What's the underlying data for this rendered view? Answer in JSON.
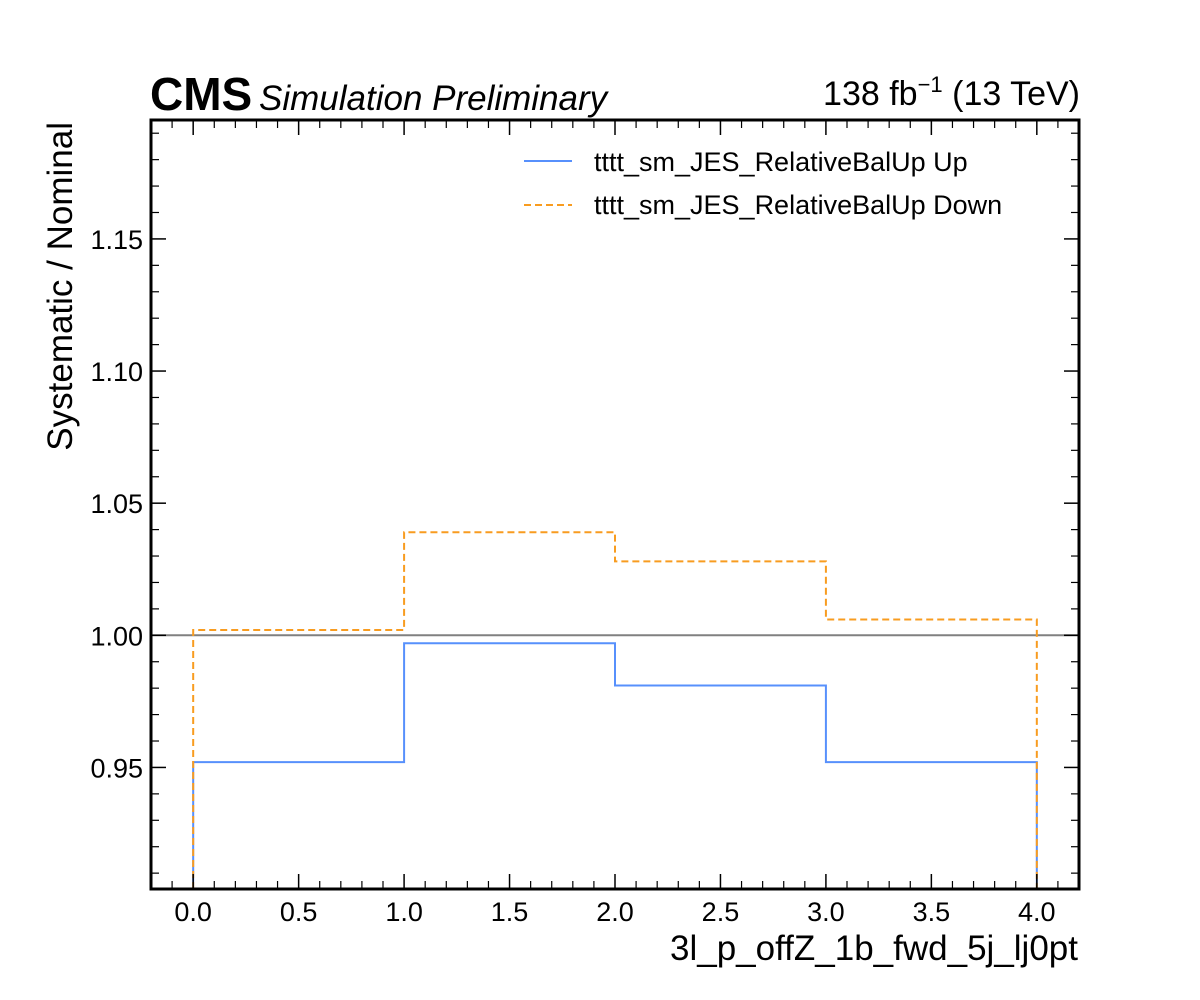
{
  "header": {
    "experiment": "CMS",
    "status": "Simulation Preliminary",
    "lumi_value": "138 fb",
    "lumi_exp": "−1",
    "energy": " (13 TeV)"
  },
  "chart_data": {
    "type": "line",
    "step": true,
    "xlabel": "3l_p_offZ_1b_fwd_5j_lj0pt",
    "ylabel": "Systematic / Nominal",
    "xlim": [
      -0.2,
      4.2
    ],
    "ylim": [
      0.904,
      1.195
    ],
    "x_ticks": [
      0.0,
      0.5,
      1.0,
      1.5,
      2.0,
      2.5,
      3.0,
      3.5,
      4.0
    ],
    "x_tick_labels": [
      "0.0",
      "0.5",
      "1.0",
      "1.5",
      "2.0",
      "2.5",
      "3.0",
      "3.5",
      "4.0"
    ],
    "y_ticks": [
      0.95,
      1.0,
      1.05,
      1.1,
      1.15
    ],
    "y_tick_labels": [
      "0.95",
      "1.00",
      "1.05",
      "1.10",
      "1.15"
    ],
    "bin_edges": [
      0,
      1,
      2,
      3,
      4
    ],
    "reference_line": 1.0,
    "legend_position": "top-right",
    "series": [
      {
        "name": "tttt_sm_JES_RelativeBalUp Up",
        "values": [
          0.952,
          0.997,
          0.981,
          0.952
        ],
        "color": "#5790fc",
        "dash": "solid"
      },
      {
        "name": "tttt_sm_JES_RelativeBalUp Down",
        "values": [
          1.002,
          1.039,
          1.028,
          1.006
        ],
        "color": "#f89c20",
        "dash": "dashed"
      }
    ],
    "reference_color": "#808080"
  }
}
